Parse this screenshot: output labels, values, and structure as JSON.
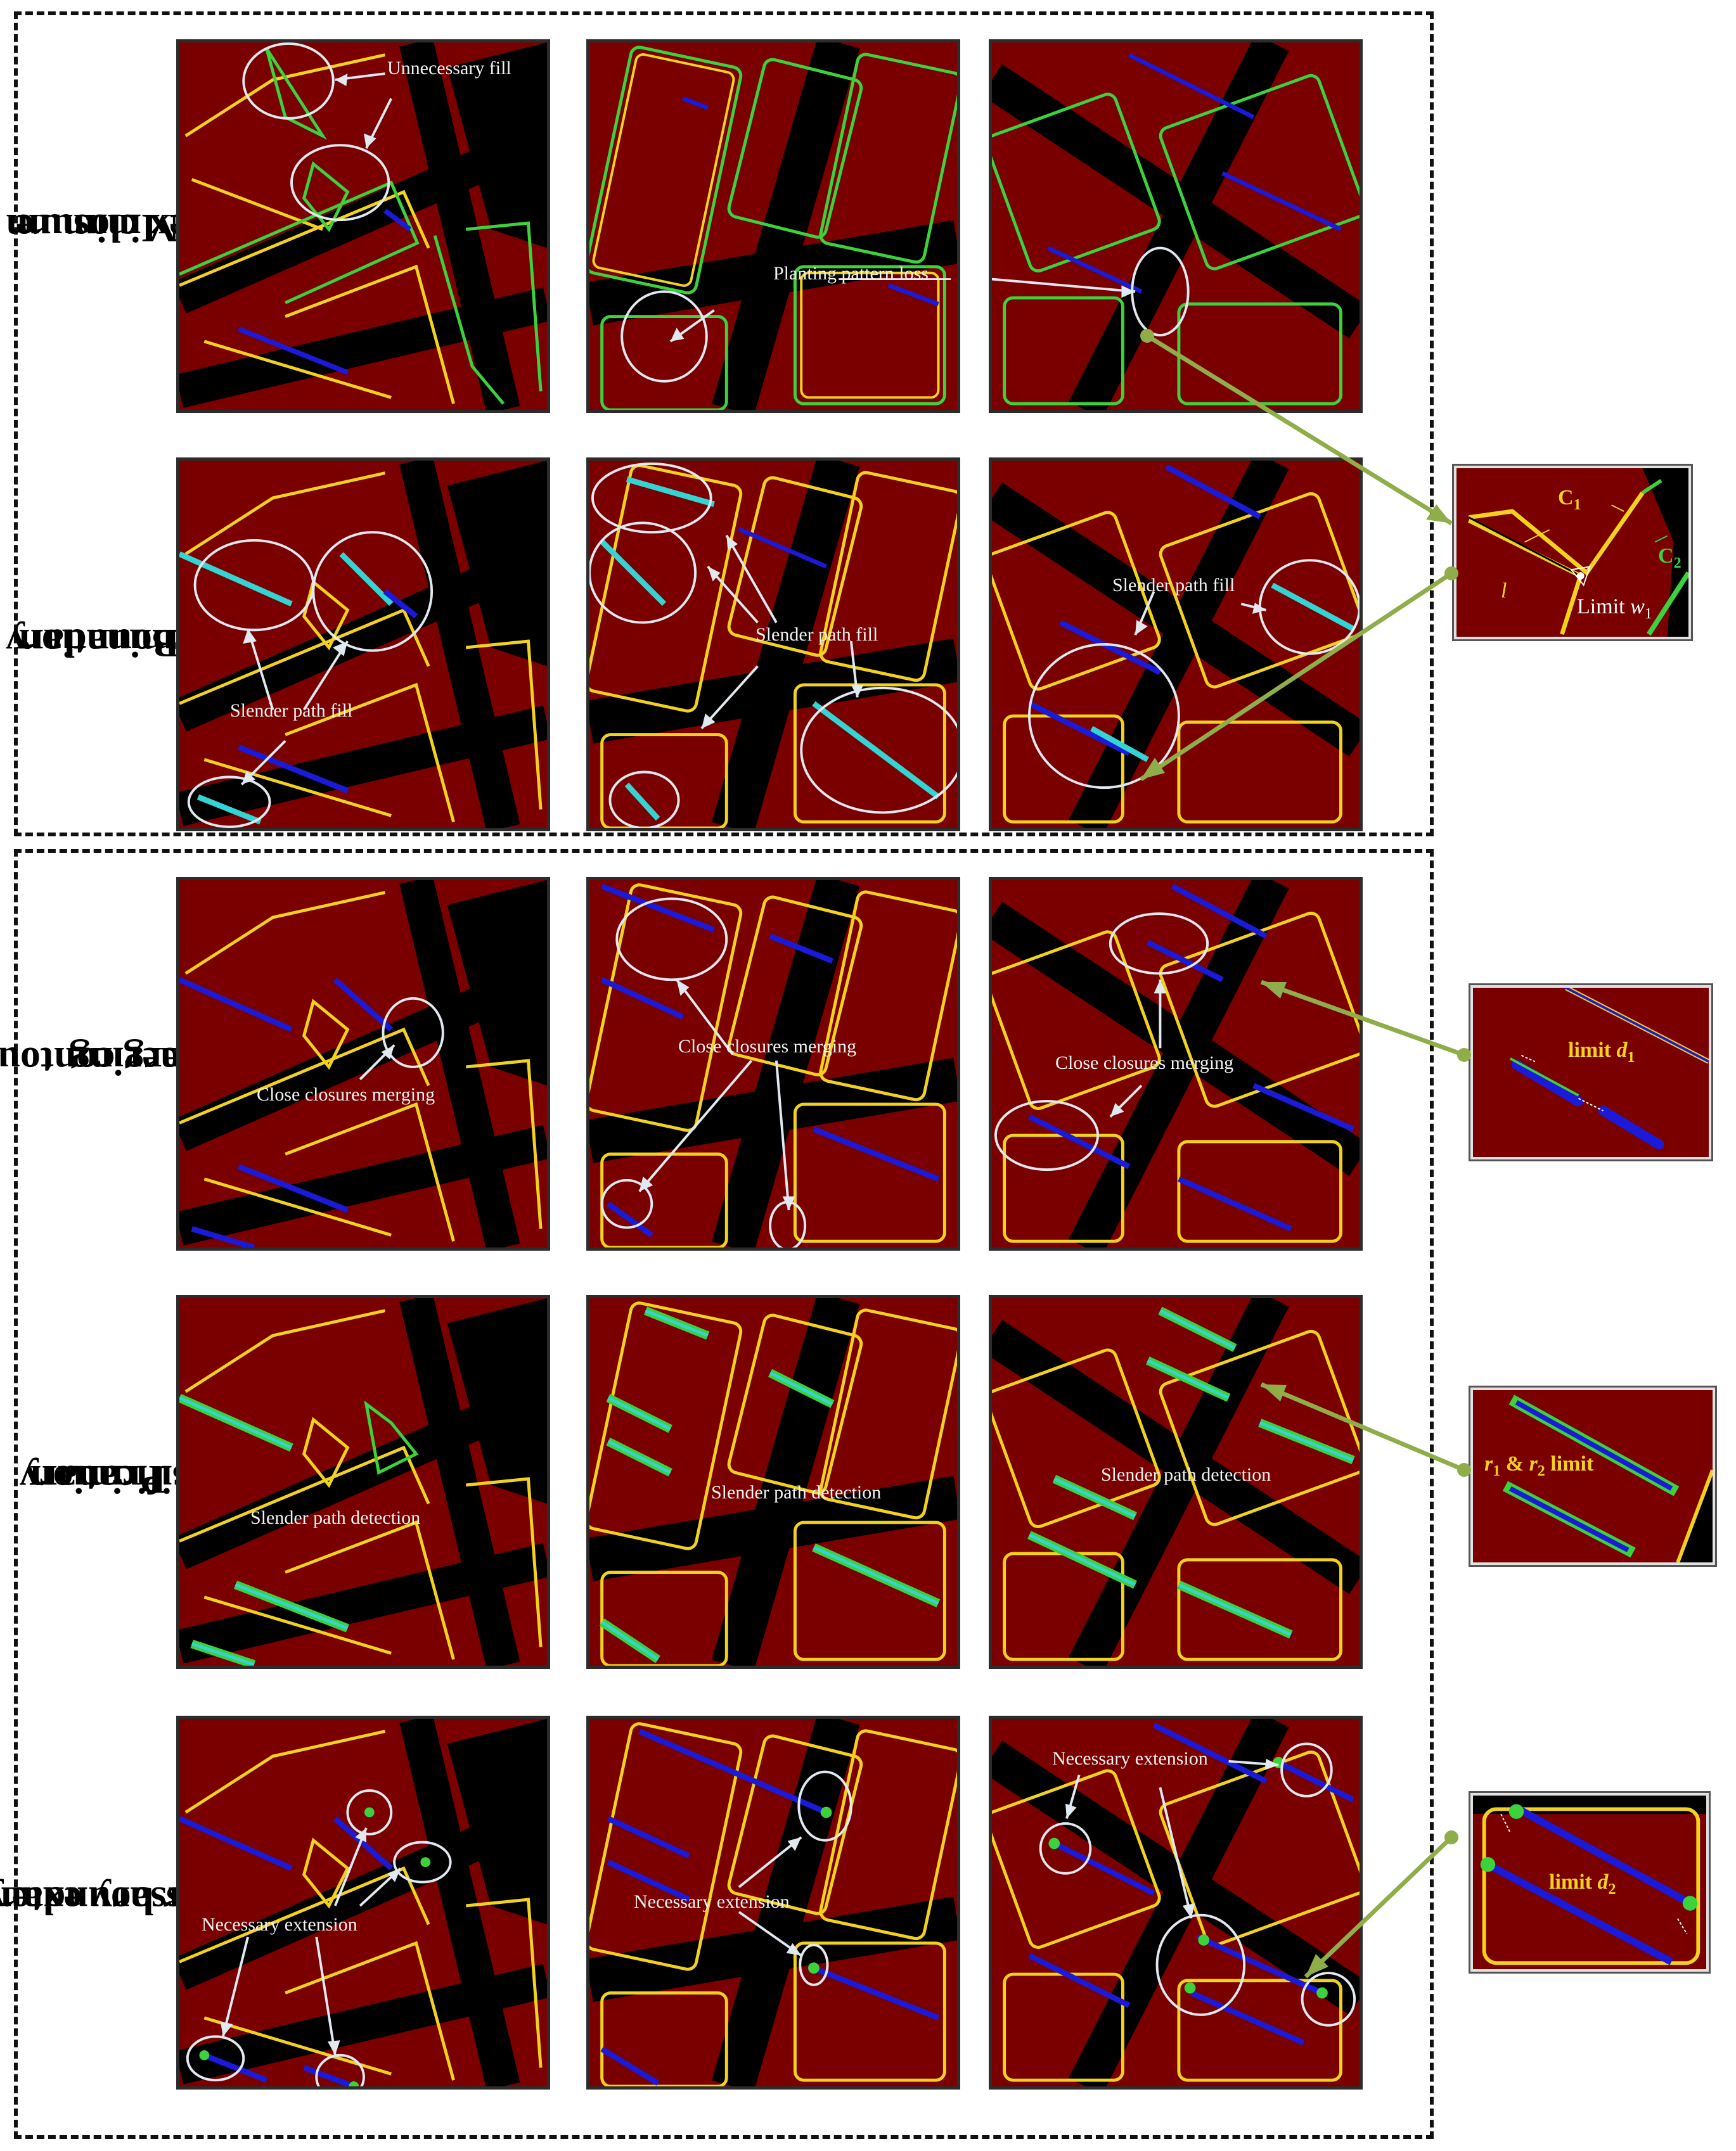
{
  "rows": [
    {
      "label_line1": "Minimum",
      "label_line2": "convex closure"
    },
    {
      "label_line1": "Boundary",
      "label_line2": "determination"
    },
    {
      "label_line1": "Inner contours",
      "label_line2": "merging"
    },
    {
      "label_line1": "Primary",
      "label_line2": "classification"
    },
    {
      "label_line1": "Necessary extension",
      "label_line2": "to outer boundary"
    }
  ],
  "annotations": {
    "unnecessary_fill": "Unnecessary fill",
    "planting_pattern_loss": "Planting pattern loss",
    "slender_path_fill": "Slender path fill",
    "close_closures_merging": "Close closures merging",
    "slender_path_detection": "Slender path detection",
    "necessary_extension": "Necessary extension"
  },
  "insets": {
    "inset1": {
      "c1": "C",
      "c1_sub": "1",
      "c2": "C",
      "c2_sub": "2",
      "l": "l",
      "limit_prefix": "Limit ",
      "w": "w",
      "w_sub": "1"
    },
    "inset2": {
      "prefix": "limit ",
      "d": "d",
      "d_sub": "1"
    },
    "inset3": {
      "r1": "r",
      "r1_sub": "1",
      "amp": " & ",
      "r2": "r",
      "r2_sub": "2",
      "suffix": " limit"
    },
    "inset4": {
      "prefix": "limit ",
      "d": "d",
      "d_sub": "2"
    }
  },
  "colors": {
    "field": "#7a0000",
    "background": "#000000",
    "contour_yellow": "#f2d21c",
    "contour_green": "#3cd23c",
    "path_blue": "#1a1ad8",
    "path_cyan": "#35d4d4",
    "arrow_olive": "#8fae4a"
  }
}
